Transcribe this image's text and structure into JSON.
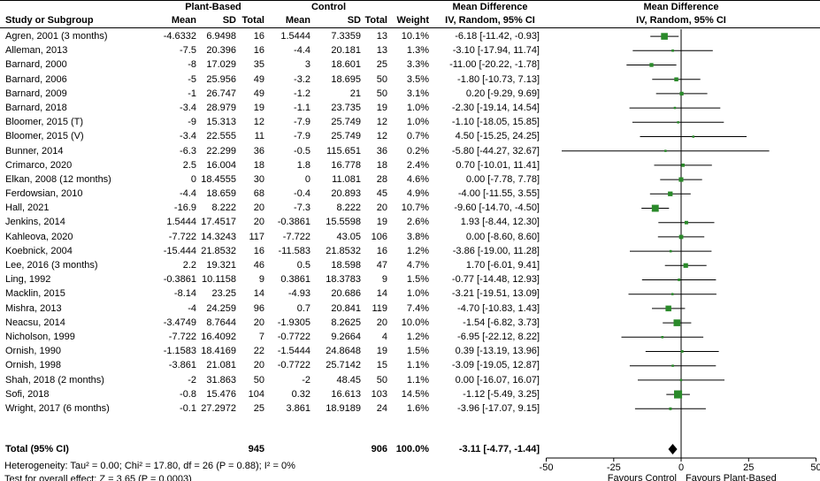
{
  "header": {
    "col_study": "Study or Subgroup",
    "group_plant": "Plant-Based",
    "group_control": "Control",
    "col_mean": "Mean",
    "col_sd": "SD",
    "col_total": "Total",
    "col_weight": "Weight",
    "md_title": "Mean Difference",
    "md_subtitle": "IV, Random, 95% CI"
  },
  "chart_data": {
    "type": "scatter",
    "variant": "forest_plot",
    "title": "Mean Difference IV, Random, 95% CI",
    "x_range": [
      -50,
      50
    ],
    "x_ticks": [
      -50,
      -25,
      0,
      25,
      50
    ],
    "favours_left": "Favours Control",
    "favours_right": "Favours Plant-Based",
    "marker_color": "#2a8a2a",
    "diamond_color": "#000000",
    "studies": [
      {
        "study": "Agren, 2001 (3 months)",
        "m1": "-4.6332",
        "sd1": "6.9498",
        "n1": "16",
        "m2": "1.5444",
        "sd2": "7.3359",
        "n2": "13",
        "wt": "10.1%",
        "ci": "-6.18 [-11.42, -0.93]",
        "md": -6.18,
        "lo": -11.42,
        "hi": -0.93,
        "w": 10.1
      },
      {
        "study": "Alleman, 2013",
        "m1": "-7.5",
        "sd1": "20.396",
        "n1": "16",
        "m2": "-4.4",
        "sd2": "20.181",
        "n2": "13",
        "wt": "1.3%",
        "ci": "-3.10 [-17.94, 11.74]",
        "md": -3.1,
        "lo": -17.94,
        "hi": 11.74,
        "w": 1.3
      },
      {
        "study": "Barnard, 2000",
        "m1": "-8",
        "sd1": "17.029",
        "n1": "35",
        "m2": "3",
        "sd2": "18.601",
        "n2": "25",
        "wt": "3.3%",
        "ci": "-11.00 [-20.22, -1.78]",
        "md": -11.0,
        "lo": -20.22,
        "hi": -1.78,
        "w": 3.3
      },
      {
        "study": "Barnard, 2006",
        "m1": "-5",
        "sd1": "25.956",
        "n1": "49",
        "m2": "-3.2",
        "sd2": "18.695",
        "n2": "50",
        "wt": "3.5%",
        "ci": "-1.80 [-10.73, 7.13]",
        "md": -1.8,
        "lo": -10.73,
        "hi": 7.13,
        "w": 3.5
      },
      {
        "study": "Barnard, 2009",
        "m1": "-1",
        "sd1": "26.747",
        "n1": "49",
        "m2": "-1.2",
        "sd2": "21",
        "n2": "50",
        "wt": "3.1%",
        "ci": "0.20 [-9.29, 9.69]",
        "md": 0.2,
        "lo": -9.29,
        "hi": 9.69,
        "w": 3.1
      },
      {
        "study": "Barnard, 2018",
        "m1": "-3.4",
        "sd1": "28.979",
        "n1": "19",
        "m2": "-1.1",
        "sd2": "23.735",
        "n2": "19",
        "wt": "1.0%",
        "ci": "-2.30 [-19.14, 14.54]",
        "md": -2.3,
        "lo": -19.14,
        "hi": 14.54,
        "w": 1.0
      },
      {
        "study": "Bloomer, 2015 (T)",
        "m1": "-9",
        "sd1": "15.313",
        "n1": "12",
        "m2": "-7.9",
        "sd2": "25.749",
        "n2": "12",
        "wt": "1.0%",
        "ci": "-1.10 [-18.05, 15.85]",
        "md": -1.1,
        "lo": -18.05,
        "hi": 15.85,
        "w": 1.0
      },
      {
        "study": "Bloomer, 2015 (V)",
        "m1": "-3.4",
        "sd1": "22.555",
        "n1": "11",
        "m2": "-7.9",
        "sd2": "25.749",
        "n2": "12",
        "wt": "0.7%",
        "ci": "4.50 [-15.25, 24.25]",
        "md": 4.5,
        "lo": -15.25,
        "hi": 24.25,
        "w": 0.7
      },
      {
        "study": "Bunner, 2014",
        "m1": "-6.3",
        "sd1": "22.299",
        "n1": "36",
        "m2": "-0.5",
        "sd2": "115.651",
        "n2": "36",
        "wt": "0.2%",
        "ci": "-5.80 [-44.27, 32.67]",
        "md": -5.8,
        "lo": -44.27,
        "hi": 32.67,
        "w": 0.2
      },
      {
        "study": "Crimarco, 2020",
        "m1": "2.5",
        "sd1": "16.004",
        "n1": "18",
        "m2": "1.8",
        "sd2": "16.778",
        "n2": "18",
        "wt": "2.4%",
        "ci": "0.70 [-10.01, 11.41]",
        "md": 0.7,
        "lo": -10.01,
        "hi": 11.41,
        "w": 2.4
      },
      {
        "study": "Elkan, 2008 (12 months)",
        "m1": "0",
        "sd1": "18.4555",
        "n1": "30",
        "m2": "0",
        "sd2": "11.081",
        "n2": "28",
        "wt": "4.6%",
        "ci": "0.00 [-7.78, 7.78]",
        "md": 0.0,
        "lo": -7.78,
        "hi": 7.78,
        "w": 4.6
      },
      {
        "study": "Ferdowsian, 2010",
        "m1": "-4.4",
        "sd1": "18.659",
        "n1": "68",
        "m2": "-0.4",
        "sd2": "20.893",
        "n2": "45",
        "wt": "4.9%",
        "ci": "-4.00 [-11.55, 3.55]",
        "md": -4.0,
        "lo": -11.55,
        "hi": 3.55,
        "w": 4.9
      },
      {
        "study": "Hall, 2021",
        "m1": "-16.9",
        "sd1": "8.222",
        "n1": "20",
        "m2": "-7.3",
        "sd2": "8.222",
        "n2": "20",
        "wt": "10.7%",
        "ci": "-9.60 [-14.70, -4.50]",
        "md": -9.6,
        "lo": -14.7,
        "hi": -4.5,
        "w": 10.7
      },
      {
        "study": "Jenkins, 2014",
        "m1": "1.5444",
        "sd1": "17.4517",
        "n1": "20",
        "m2": "-0.3861",
        "sd2": "15.5598",
        "n2": "19",
        "wt": "2.6%",
        "ci": "1.93 [-8.44, 12.30]",
        "md": 1.93,
        "lo": -8.44,
        "hi": 12.3,
        "w": 2.6
      },
      {
        "study": "Kahleova, 2020",
        "m1": "-7.722",
        "sd1": "14.3243",
        "n1": "117",
        "m2": "-7.722",
        "sd2": "43.05",
        "n2": "106",
        "wt": "3.8%",
        "ci": "0.00 [-8.60, 8.60]",
        "md": 0.0,
        "lo": -8.6,
        "hi": 8.6,
        "w": 3.8
      },
      {
        "study": "Koebnick, 2004",
        "m1": "-15.444",
        "sd1": "21.8532",
        "n1": "16",
        "m2": "-11.583",
        "sd2": "21.8532",
        "n2": "16",
        "wt": "1.2%",
        "ci": "-3.86 [-19.00, 11.28]",
        "md": -3.86,
        "lo": -19.0,
        "hi": 11.28,
        "w": 1.2
      },
      {
        "study": "Lee, 2016 (3 months)",
        "m1": "2.2",
        "sd1": "19.321",
        "n1": "46",
        "m2": "0.5",
        "sd2": "18.598",
        "n2": "47",
        "wt": "4.7%",
        "ci": "1.70 [-6.01, 9.41]",
        "md": 1.7,
        "lo": -6.01,
        "hi": 9.41,
        "w": 4.7
      },
      {
        "study": "Ling, 1992",
        "m1": "-0.3861",
        "sd1": "10.1158",
        "n1": "9",
        "m2": "0.3861",
        "sd2": "18.3783",
        "n2": "9",
        "wt": "1.5%",
        "ci": "-0.77 [-14.48, 12.93]",
        "md": -0.77,
        "lo": -14.48,
        "hi": 12.93,
        "w": 1.5
      },
      {
        "study": "Macklin, 2015",
        "m1": "-8.14",
        "sd1": "23.25",
        "n1": "14",
        "m2": "-4.93",
        "sd2": "20.686",
        "n2": "14",
        "wt": "1.0%",
        "ci": "-3.21 [-19.51, 13.09]",
        "md": -3.21,
        "lo": -19.51,
        "hi": 13.09,
        "w": 1.0
      },
      {
        "study": "Mishra, 2013",
        "m1": "-4",
        "sd1": "24.259",
        "n1": "96",
        "m2": "0.7",
        "sd2": "20.841",
        "n2": "119",
        "wt": "7.4%",
        "ci": "-4.70 [-10.83, 1.43]",
        "md": -4.7,
        "lo": -10.83,
        "hi": 1.43,
        "w": 7.4
      },
      {
        "study": "Neacsu, 2014",
        "m1": "-3.4749",
        "sd1": "8.7644",
        "n1": "20",
        "m2": "-1.9305",
        "sd2": "8.2625",
        "n2": "20",
        "wt": "10.0%",
        "ci": "-1.54 [-6.82, 3.73]",
        "md": -1.54,
        "lo": -6.82,
        "hi": 3.73,
        "w": 10.0
      },
      {
        "study": "Nicholson, 1999",
        "m1": "-7.722",
        "sd1": "16.4092",
        "n1": "7",
        "m2": "-0.7722",
        "sd2": "9.2664",
        "n2": "4",
        "wt": "1.2%",
        "ci": "-6.95 [-22.12, 8.22]",
        "md": -6.95,
        "lo": -22.12,
        "hi": 8.22,
        "w": 1.2
      },
      {
        "study": "Ornish, 1990",
        "m1": "-1.1583",
        "sd1": "18.4169",
        "n1": "22",
        "m2": "-1.5444",
        "sd2": "24.8648",
        "n2": "19",
        "wt": "1.5%",
        "ci": "0.39 [-13.19, 13.96]",
        "md": 0.39,
        "lo": -13.19,
        "hi": 13.96,
        "w": 1.5
      },
      {
        "study": "Ornish, 1998",
        "m1": "-3.861",
        "sd1": "21.081",
        "n1": "20",
        "m2": "-0.7722",
        "sd2": "25.7142",
        "n2": "15",
        "wt": "1.1%",
        "ci": "-3.09 [-19.05, 12.87]",
        "md": -3.09,
        "lo": -19.05,
        "hi": 12.87,
        "w": 1.1
      },
      {
        "study": "Shah, 2018 (2 months)",
        "m1": "-2",
        "sd1": "31.863",
        "n1": "50",
        "m2": "-2",
        "sd2": "48.45",
        "n2": "50",
        "wt": "1.1%",
        "ci": "0.00 [-16.07, 16.07]",
        "md": 0.0,
        "lo": -16.07,
        "hi": 16.07,
        "w": 1.1
      },
      {
        "study": "Sofi, 2018",
        "m1": "-0.8",
        "sd1": "15.476",
        "n1": "104",
        "m2": "0.32",
        "sd2": "16.613",
        "n2": "103",
        "wt": "14.5%",
        "ci": "-1.12 [-5.49, 3.25]",
        "md": -1.12,
        "lo": -5.49,
        "hi": 3.25,
        "w": 14.5
      },
      {
        "study": "Wright, 2017 (6 months)",
        "m1": "-0.1",
        "sd1": "27.2972",
        "n1": "25",
        "m2": "3.861",
        "sd2": "18.9189",
        "n2": "24",
        "wt": "1.6%",
        "ci": "-3.96 [-17.07, 9.15]",
        "md": -3.96,
        "lo": -17.07,
        "hi": 9.15,
        "w": 1.6
      }
    ],
    "total": {
      "label": "Total (95% CI)",
      "n1": "945",
      "n2": "906",
      "wt": "100.0%",
      "ci": "-3.11 [-4.77, -1.44]",
      "md": -3.11,
      "lo": -4.77,
      "hi": -1.44
    }
  },
  "footnotes": {
    "heterogeneity": "Heterogeneity: Tau² = 0.00; Chi² = 17.80, df = 26 (P = 0.88); I² = 0%",
    "overall_effect": "Test for overall effect: Z = 3.65 (P = 0.0003)"
  }
}
